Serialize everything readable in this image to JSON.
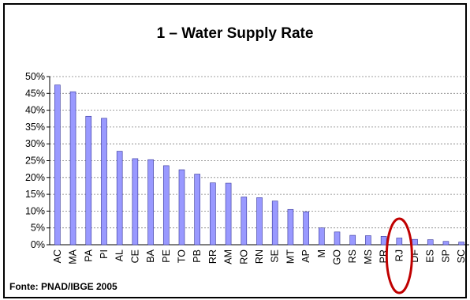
{
  "chart_data": {
    "type": "bar",
    "title": "1 – Water Supply Rate",
    "xlabel": "",
    "ylabel": "",
    "ylim": [
      0,
      50
    ],
    "y_ticks": [
      "0%",
      "5%",
      "10%",
      "15%",
      "20%",
      "25%",
      "30%",
      "35%",
      "40%",
      "45%",
      "50%"
    ],
    "grid": true,
    "categories": [
      "AC",
      "MA",
      "PA",
      "PI",
      "AL",
      "CE",
      "BA",
      "PE",
      "TO",
      "PB",
      "RR",
      "AM",
      "RO",
      "RN",
      "SE",
      "MT",
      "AP",
      "M",
      "GO",
      "RS",
      "MS",
      "PR",
      "RJ",
      "DF",
      "ES",
      "SP",
      "SC"
    ],
    "values": [
      47.5,
      45.5,
      38.2,
      37.6,
      27.8,
      25.6,
      25.3,
      23.5,
      22.3,
      21.0,
      18.4,
      18.3,
      14.2,
      14.0,
      13.0,
      10.5,
      9.8,
      5.0,
      3.8,
      2.8,
      2.7,
      2.5,
      2.0,
      1.6,
      1.5,
      1.0,
      0.8
    ],
    "highlight": "RJ",
    "colors": {
      "bar": "#9999ff",
      "bar_edge": "#333399",
      "grid": "#808080",
      "highlight": "#c00000"
    }
  },
  "source_note": "Fonte: PNAD/IBGE 2005"
}
